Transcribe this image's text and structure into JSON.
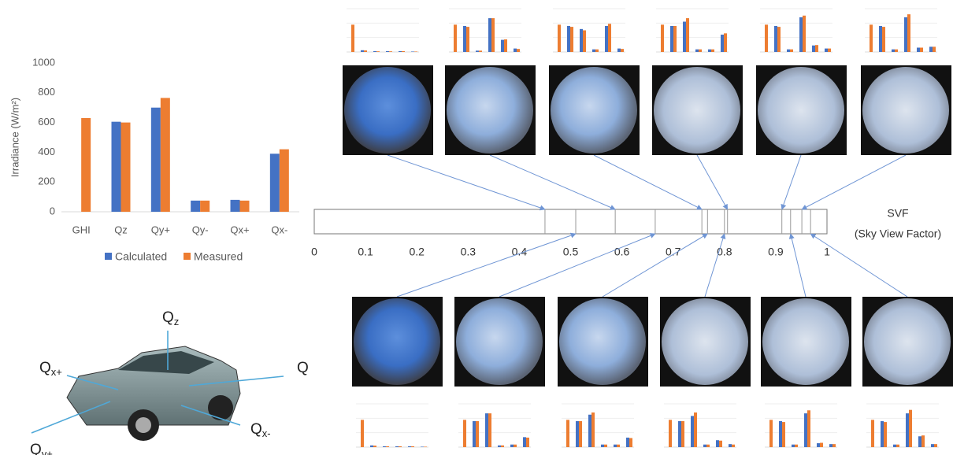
{
  "chart_data": [
    {
      "type": "bar",
      "ylabel": "Irradiance (W/m²)",
      "categories": [
        "GHI",
        "Qz",
        "Qy+",
        "Qy-",
        "Qx+",
        "Qx-"
      ],
      "series": [
        {
          "name": "Calculated",
          "color": "#4472c4",
          "values": [
            null,
            605,
            700,
            75,
            80,
            390
          ]
        },
        {
          "name": "Measured",
          "color": "#ed7d31",
          "values": [
            630,
            600,
            765,
            75,
            75,
            420
          ]
        }
      ],
      "ylim": [
        0,
        1000
      ],
      "yticks": [
        0,
        200,
        400,
        600,
        800,
        1000
      ],
      "grid": false,
      "legend": "bottom"
    },
    {
      "type": "strip",
      "title": "SVF",
      "subtitle": "(Sky View Factor)",
      "xlim": [
        0,
        1
      ],
      "xticks": [
        0,
        0.1,
        0.2,
        0.3,
        0.4,
        0.5,
        0.6,
        0.7,
        0.8,
        0.9,
        1
      ],
      "values": [
        0.45,
        0.587,
        0.756,
        0.806,
        0.912,
        0.951,
        0.51,
        0.665,
        0.767,
        0.8,
        0.929,
        0.968
      ]
    },
    {
      "type": "mini",
      "ylim": [
        0,
        1000
      ],
      "series": [
        {
          "color": "#4472c4",
          "values": [
            null,
            40,
            20,
            20,
            20,
            10
          ]
        },
        {
          "color": "#ed7d31",
          "values": [
            630,
            35,
            15,
            15,
            20,
            10
          ]
        }
      ]
    },
    {
      "type": "mini",
      "ylim": [
        0,
        1000
      ],
      "series": [
        {
          "color": "#4472c4",
          "values": [
            null,
            600,
            30,
            780,
            280,
            80
          ]
        },
        {
          "color": "#ed7d31",
          "values": [
            630,
            580,
            30,
            780,
            290,
            70
          ]
        }
      ]
    },
    {
      "type": "mini",
      "ylim": [
        0,
        1000
      ],
      "series": [
        {
          "color": "#4472c4",
          "values": [
            null,
            600,
            530,
            60,
            600,
            80
          ]
        },
        {
          "color": "#ed7d31",
          "values": [
            630,
            580,
            500,
            60,
            650,
            70
          ]
        }
      ]
    },
    {
      "type": "mini",
      "ylim": [
        0,
        1000
      ],
      "series": [
        {
          "color": "#4472c4",
          "values": [
            null,
            600,
            700,
            60,
            60,
            400
          ]
        },
        {
          "color": "#ed7d31",
          "values": [
            630,
            600,
            780,
            60,
            60,
            430
          ]
        }
      ]
    },
    {
      "type": "mini",
      "ylim": [
        0,
        1000
      ],
      "series": [
        {
          "color": "#4472c4",
          "values": [
            null,
            600,
            60,
            800,
            150,
            80
          ]
        },
        {
          "color": "#ed7d31",
          "values": [
            630,
            580,
            60,
            840,
            160,
            80
          ]
        }
      ]
    },
    {
      "type": "mini",
      "ylim": [
        0,
        1000
      ],
      "series": [
        {
          "color": "#4472c4",
          "values": [
            null,
            600,
            60,
            800,
            100,
            120
          ]
        },
        {
          "color": "#ed7d31",
          "values": [
            630,
            580,
            60,
            870,
            100,
            120
          ]
        }
      ]
    },
    {
      "type": "mini",
      "ylim": [
        0,
        1000
      ],
      "series": [
        {
          "color": "#4472c4",
          "values": [
            null,
            40,
            20,
            20,
            20,
            10
          ]
        },
        {
          "color": "#ed7d31",
          "values": [
            630,
            35,
            20,
            20,
            20,
            10
          ]
        }
      ]
    },
    {
      "type": "mini",
      "ylim": [
        0,
        1000
      ],
      "series": [
        {
          "color": "#4472c4",
          "values": [
            null,
            600,
            780,
            40,
            60,
            230
          ]
        },
        {
          "color": "#ed7d31",
          "values": [
            630,
            600,
            780,
            40,
            60,
            220
          ]
        }
      ]
    },
    {
      "type": "mini",
      "ylim": [
        0,
        1000
      ],
      "series": [
        {
          "color": "#4472c4",
          "values": [
            null,
            600,
            750,
            60,
            60,
            220
          ]
        },
        {
          "color": "#ed7d31",
          "values": [
            630,
            600,
            800,
            60,
            60,
            210
          ]
        }
      ]
    },
    {
      "type": "mini",
      "ylim": [
        0,
        1000
      ],
      "series": [
        {
          "color": "#4472c4",
          "values": [
            null,
            600,
            720,
            60,
            160,
            70
          ]
        },
        {
          "color": "#ed7d31",
          "values": [
            630,
            600,
            800,
            60,
            150,
            60
          ]
        }
      ]
    },
    {
      "type": "mini",
      "ylim": [
        0,
        1000
      ],
      "series": [
        {
          "color": "#4472c4",
          "values": [
            null,
            600,
            60,
            780,
            90,
            70
          ]
        },
        {
          "color": "#ed7d31",
          "values": [
            630,
            580,
            60,
            850,
            100,
            70
          ]
        }
      ]
    },
    {
      "type": "mini",
      "ylim": [
        0,
        1000
      ],
      "series": [
        {
          "color": "#4472c4",
          "values": [
            null,
            600,
            60,
            780,
            250,
            70
          ]
        },
        {
          "color": "#ed7d31",
          "values": [
            630,
            580,
            60,
            860,
            270,
            70
          ]
        }
      ]
    }
  ],
  "diagram": {
    "labels": [
      {
        "text": "Q",
        "sub": "z"
      },
      {
        "text": "Q",
        "sub": "x+"
      },
      {
        "text": "Q"
      },
      {
        "text": "Q",
        "sub": "x-"
      },
      {
        "text": "Q",
        "sub": "y+"
      }
    ]
  }
}
